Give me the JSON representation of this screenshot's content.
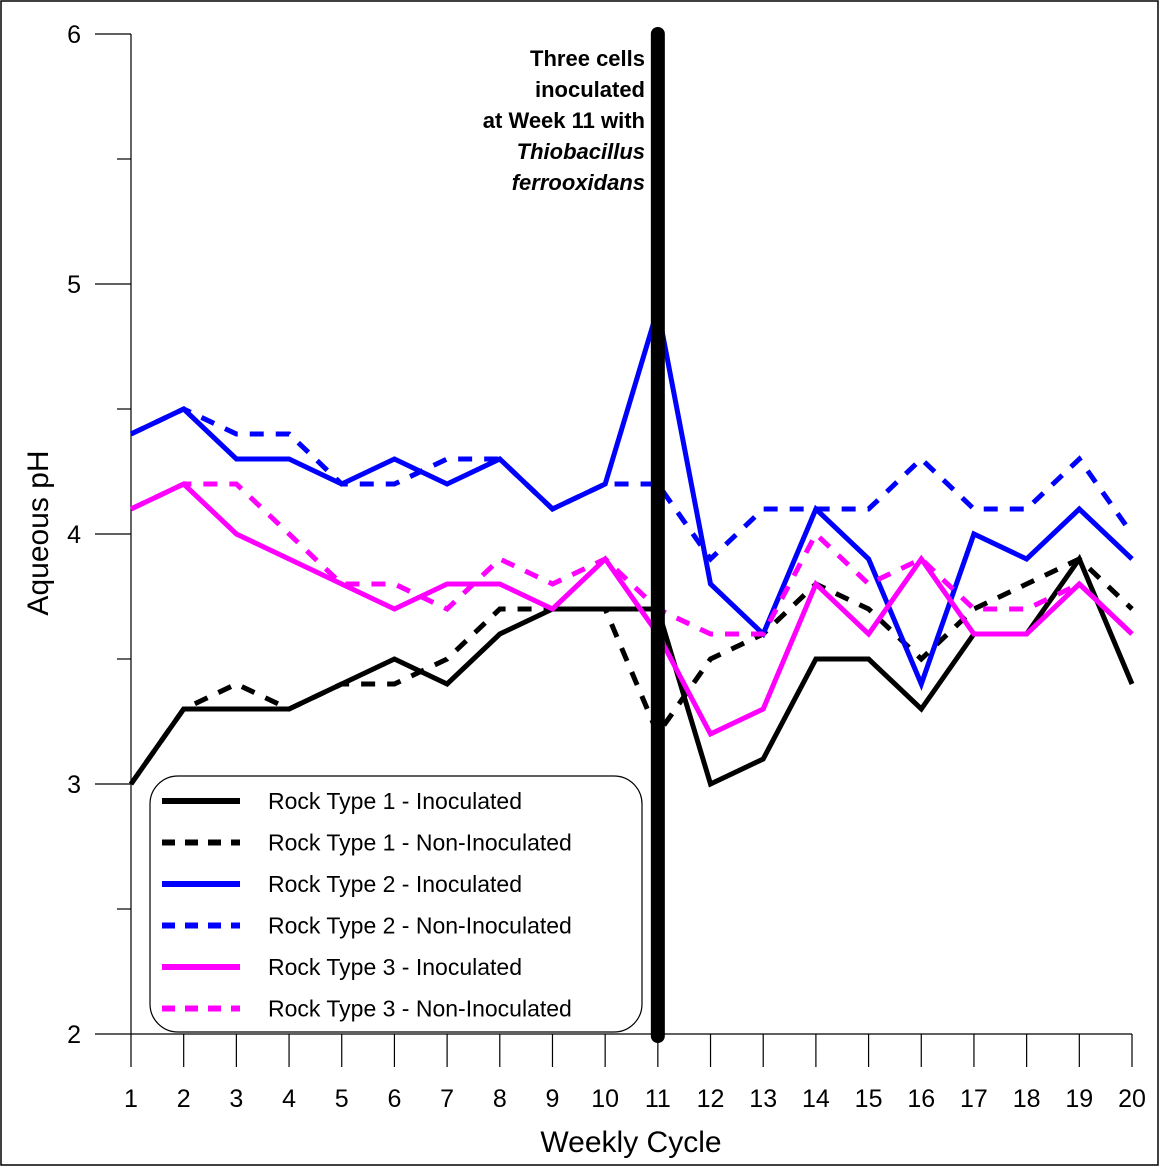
{
  "chart_data": {
    "type": "line",
    "title": "",
    "xlabel": "Weekly Cycle",
    "ylabel": "Aqueous pH",
    "x": [
      1,
      2,
      3,
      4,
      5,
      6,
      7,
      8,
      9,
      10,
      11,
      12,
      13,
      14,
      15,
      16,
      17,
      18,
      19,
      20
    ],
    "xlim": [
      1,
      20
    ],
    "ylim": [
      2,
      6
    ],
    "y_major_ticks": [
      2,
      3,
      4,
      5,
      6
    ],
    "y_minor_ticks": [
      2.5,
      3.5,
      4.5,
      5.5
    ],
    "grid": false,
    "legend_position": "bottom-left",
    "series": [
      {
        "name": "Rock Type 1 - Inoculated",
        "color": "#000000",
        "style": "solid",
        "values": [
          3.0,
          3.3,
          3.3,
          3.3,
          3.4,
          3.5,
          3.4,
          3.6,
          3.7,
          3.7,
          3.7,
          3.0,
          3.1,
          3.5,
          3.5,
          3.3,
          3.6,
          3.6,
          3.9,
          3.4
        ]
      },
      {
        "name": "Rock Type 1 - Non-Inoculated",
        "color": "#000000",
        "style": "dashed",
        "values": [
          3.0,
          3.3,
          3.4,
          3.3,
          3.4,
          3.4,
          3.5,
          3.7,
          3.7,
          3.7,
          3.2,
          3.5,
          3.6,
          3.8,
          3.7,
          3.5,
          3.7,
          3.8,
          3.9,
          3.7
        ]
      },
      {
        "name": "Rock Type 2 - Inoculated",
        "color": "#0000ff",
        "style": "solid",
        "values": [
          4.4,
          4.5,
          4.3,
          4.3,
          4.2,
          4.3,
          4.2,
          4.3,
          4.1,
          4.2,
          4.9,
          3.8,
          3.6,
          4.1,
          3.9,
          3.4,
          4.0,
          3.9,
          4.1,
          3.9
        ]
      },
      {
        "name": "Rock Type 2 - Non-Inoculated",
        "color": "#0000ff",
        "style": "dashed",
        "values": [
          4.4,
          4.5,
          4.4,
          4.4,
          4.2,
          4.2,
          4.3,
          4.3,
          4.1,
          4.2,
          4.2,
          3.9,
          4.1,
          4.1,
          4.1,
          4.3,
          4.1,
          4.1,
          4.3,
          4.0
        ]
      },
      {
        "name": "Rock Type 3 - Inoculated",
        "color": "#ff00ff",
        "style": "solid",
        "values": [
          4.1,
          4.2,
          4.0,
          3.9,
          3.8,
          3.7,
          3.8,
          3.8,
          3.7,
          3.9,
          3.6,
          3.2,
          3.3,
          3.8,
          3.6,
          3.9,
          3.6,
          3.6,
          3.8,
          3.6
        ]
      },
      {
        "name": "Rock Type 3 - Non-Inoculated",
        "color": "#ff00ff",
        "style": "dashed",
        "values": [
          4.1,
          4.2,
          4.2,
          4.0,
          3.8,
          3.8,
          3.7,
          3.9,
          3.8,
          3.9,
          3.7,
          3.6,
          3.6,
          4.0,
          3.8,
          3.9,
          3.7,
          3.7,
          3.8,
          3.6
        ]
      }
    ],
    "vertical_marker": {
      "x": 11,
      "color": "#000000"
    },
    "annotation": {
      "lines": [
        {
          "text": "Three cells",
          "italic": false
        },
        {
          "text": "inoculated",
          "italic": false
        },
        {
          "text": "at Week 11 with",
          "italic": false
        },
        {
          "text": "Thiobacillus",
          "italic": true
        },
        {
          "text": "ferrooxidans",
          "italic": true
        }
      ]
    }
  }
}
